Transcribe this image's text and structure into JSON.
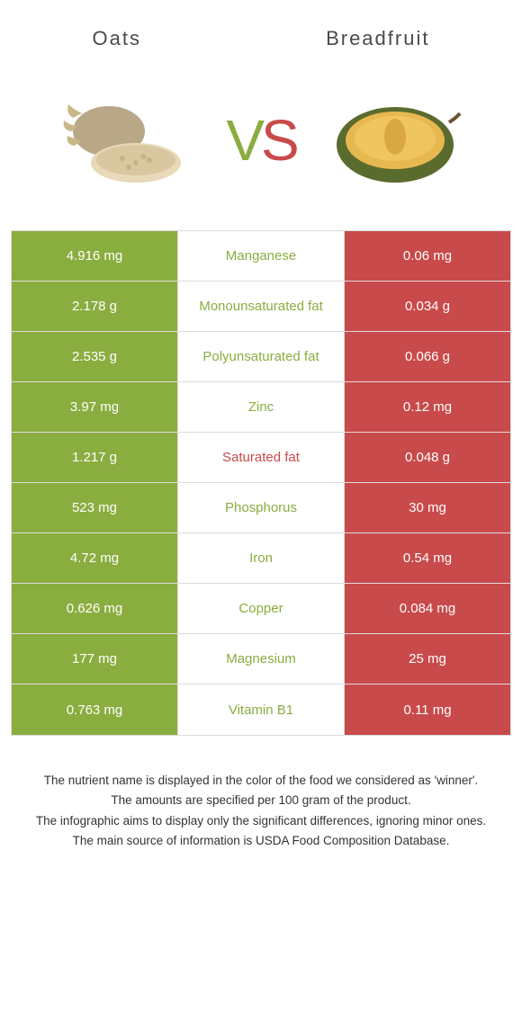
{
  "header": {
    "left": "Oats",
    "right": "Breadfruit"
  },
  "vs": {
    "v": "V",
    "s": "S"
  },
  "colors": {
    "oats": "#8aad3f",
    "breadfruit": "#c94a4a",
    "oats_text": "#8aad3f",
    "breadfruit_text": "#c94a4a",
    "cell_text": "#ffffff",
    "border": "#dcdcdc"
  },
  "rows": [
    {
      "left": "4.916 mg",
      "label": "Manganese",
      "right": "0.06 mg",
      "winner": "oats"
    },
    {
      "left": "2.178 g",
      "label": "Monounsaturated fat",
      "right": "0.034 g",
      "winner": "oats"
    },
    {
      "left": "2.535 g",
      "label": "Polyunsaturated fat",
      "right": "0.066 g",
      "winner": "oats"
    },
    {
      "left": "3.97 mg",
      "label": "Zinc",
      "right": "0.12 mg",
      "winner": "oats"
    },
    {
      "left": "1.217 g",
      "label": "Saturated fat",
      "right": "0.048 g",
      "winner": "breadfruit"
    },
    {
      "left": "523 mg",
      "label": "Phosphorus",
      "right": "30 mg",
      "winner": "oats"
    },
    {
      "left": "4.72 mg",
      "label": "Iron",
      "right": "0.54 mg",
      "winner": "oats"
    },
    {
      "left": "0.626 mg",
      "label": "Copper",
      "right": "0.084 mg",
      "winner": "oats"
    },
    {
      "left": "177 mg",
      "label": "Magnesium",
      "right": "25 mg",
      "winner": "oats"
    },
    {
      "left": "0.763 mg",
      "label": "Vitamin B1",
      "right": "0.11 mg",
      "winner": "oats"
    }
  ],
  "footer": [
    "The nutrient name is displayed in the color of the food we considered as 'winner'.",
    "The amounts are specified per 100 gram of the product.",
    "The infographic aims to display only the significant differences, ignoring minor ones.",
    "The main source of information is USDA Food Composition Database."
  ]
}
